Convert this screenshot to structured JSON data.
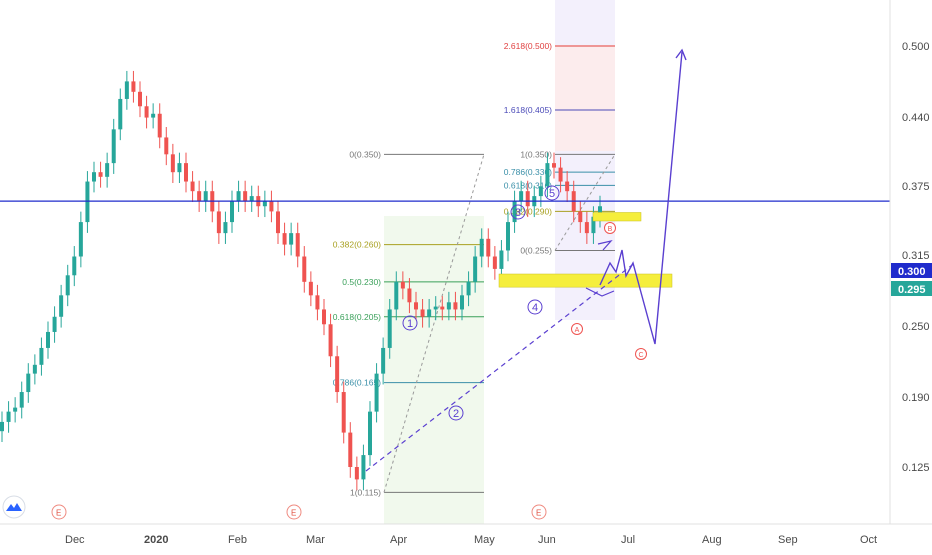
{
  "colors": {
    "up": "#26a69a",
    "down": "#ef5350",
    "price_line": "#1f2bcc",
    "price_tag": "#1f2bcc",
    "last_tag": "#26a69a",
    "wave": "#5a3fd0",
    "zone": "#f5ee3c",
    "axis_text": "#4a4a4a",
    "fib_red": "#e04040",
    "fib_blue": "#4a4ab8",
    "fib_cyan": "#3a8fa8",
    "fib_green": "#3aa05a",
    "fib_yellow": "#a8a020",
    "fib_gray": "#777777"
  },
  "icons": {
    "logo": "tradingview-cloud-icon",
    "event": "earnings-e-icon"
  },
  "chart_data": {
    "type": "candlestick",
    "y_axis": {
      "scale": "log",
      "range": [
        0.105,
        0.55
      ],
      "ticks": [
        "0.500",
        "0.440",
        "0.375",
        "0.315",
        "0.250",
        "0.190",
        "0.125"
      ]
    },
    "x_axis": {
      "ticks": [
        "Dec",
        "2020",
        "Feb",
        "Mar",
        "Apr",
        "May",
        "Jun",
        "Jul",
        "Aug",
        "Sep",
        "Oct"
      ]
    },
    "price_line": {
      "value": 0.3,
      "label": "0.300"
    },
    "last_price": {
      "value": 0.295,
      "label": "0.295"
    },
    "event_markers": [
      "E",
      "E",
      "E"
    ],
    "fib_retracement_1": {
      "levels": [
        {
          "label": "0(0.350)",
          "value": 0.35
        },
        {
          "label": "0.382(0.260)",
          "value": 0.26
        },
        {
          "label": "0.5(0.230)",
          "value": 0.23
        },
        {
          "label": "0.618(0.205)",
          "value": 0.205
        },
        {
          "label": "0.786(0.165)",
          "value": 0.165
        },
        {
          "label": "1(0.115)",
          "value": 0.115
        }
      ]
    },
    "fib_extension_2": {
      "levels": [
        {
          "label": "2.618(0.500)",
          "value": 0.5
        },
        {
          "label": "1.618(0.405)",
          "value": 0.405
        },
        {
          "label": "1(0.350)",
          "value": 0.35
        },
        {
          "label": "0.786(0.330)",
          "value": 0.33
        },
        {
          "label": "0.618(0.316)",
          "value": 0.316
        },
        {
          "label": "0.382(0.290)",
          "value": 0.29
        },
        {
          "label": "0(0.255)",
          "value": 0.255
        }
      ]
    },
    "wave_labels": [
      "1",
      "2",
      "3",
      "4",
      "5"
    ],
    "correction_labels": [
      "A",
      "B",
      "C"
    ],
    "support_zones": [
      {
        "low": 0.226,
        "high": 0.236
      },
      {
        "low": 0.281,
        "high": 0.289
      }
    ],
    "close_path": [
      0.145,
      0.15,
      0.152,
      0.16,
      0.17,
      0.175,
      0.185,
      0.195,
      0.205,
      0.22,
      0.235,
      0.25,
      0.28,
      0.32,
      0.33,
      0.325,
      0.34,
      0.38,
      0.42,
      0.445,
      0.43,
      0.41,
      0.395,
      0.4,
      0.37,
      0.35,
      0.33,
      0.34,
      0.32,
      0.31,
      0.3,
      0.31,
      0.29,
      0.27,
      0.28,
      0.3,
      0.31,
      0.3,
      0.305,
      0.295,
      0.3,
      0.29,
      0.27,
      0.26,
      0.27,
      0.25,
      0.23,
      0.22,
      0.21,
      0.2,
      0.18,
      0.16,
      0.14,
      0.125,
      0.12,
      0.13,
      0.15,
      0.17,
      0.185,
      0.21,
      0.23,
      0.225,
      0.215,
      0.21,
      0.205,
      0.21,
      0.212,
      0.21,
      0.215,
      0.21,
      0.22,
      0.23,
      0.25,
      0.265,
      0.25,
      0.24,
      0.255,
      0.28,
      0.3,
      0.31,
      0.295,
      0.305,
      0.315,
      0.34,
      0.335,
      0.32,
      0.31,
      0.29,
      0.28,
      0.27,
      0.285,
      0.295
    ]
  }
}
